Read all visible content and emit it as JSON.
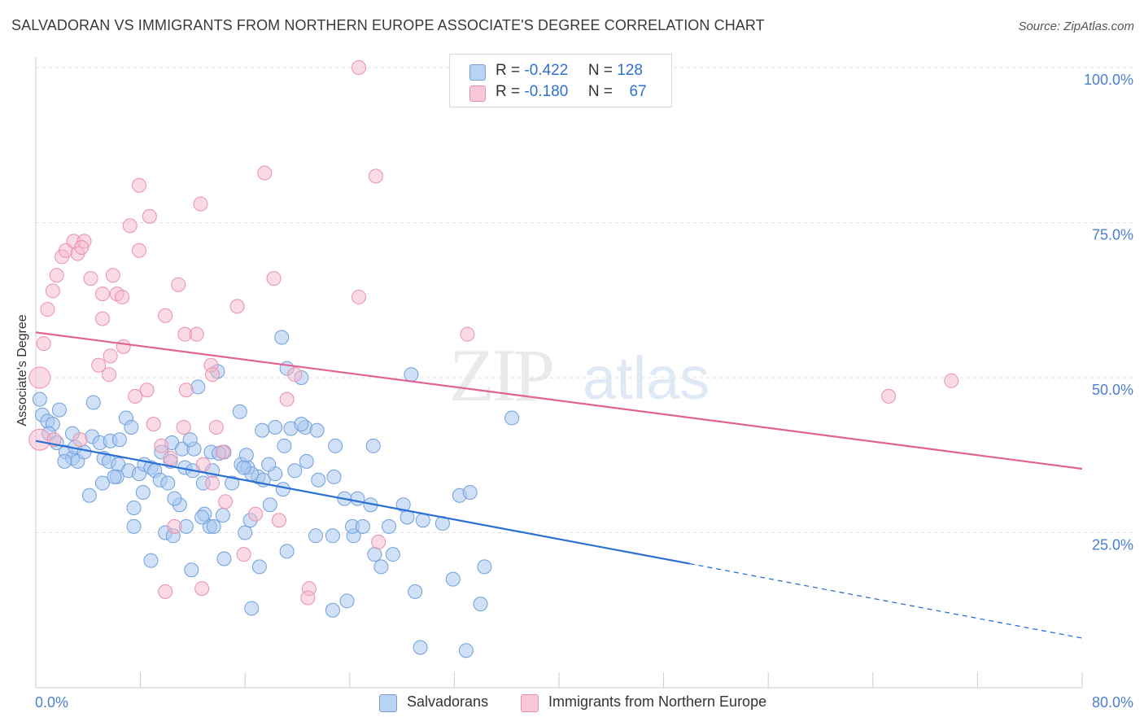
{
  "title": "SALVADORAN VS IMMIGRANTS FROM NORTHERN EUROPE ASSOCIATE'S DEGREE CORRELATION CHART",
  "source": "Source: ZipAtlas.com",
  "watermark": {
    "zip": "ZIP",
    "atlas": "atlas"
  },
  "legend": {
    "salvadorans": {
      "r_label": "R =",
      "r_value": "-0.422",
      "n_label": "N =",
      "n_value": "128"
    },
    "immigrants": {
      "r_label": "R =",
      "r_value": "-0.180",
      "n_label": "N =",
      "n_value": "67"
    }
  },
  "bottom_legend": {
    "series1": "Salvadorans",
    "series2": "Immigrants from Northern Europe"
  },
  "colors": {
    "blue_fill": "#a9c8f0",
    "blue_stroke": "#6f9fdc",
    "blue_line": "#2a6fd4",
    "pink_fill": "#f6b8cb",
    "pink_stroke": "#ea8fab",
    "pink_line": "#e26390",
    "tick_label": "#4a7fd0",
    "grid": "#e0e0e0"
  },
  "chart_data": {
    "type": "scatter",
    "title": "SALVADORAN VS IMMIGRANTS FROM NORTHERN EUROPE ASSOCIATE'S DEGREE CORRELATION CHART",
    "xlabel": "",
    "ylabel": "Associate's Degree",
    "xlim": [
      0,
      80
    ],
    "ylim": [
      0,
      102
    ],
    "x_tick_labels": [
      "0.0%",
      "80.0%"
    ],
    "y_tick_labels": [
      "25.0%",
      "50.0%",
      "75.0%",
      "100.0%"
    ],
    "y_ticks": [
      25,
      50,
      75,
      100
    ],
    "grid": true,
    "series": [
      {
        "name": "Salvadorans",
        "r": -0.422,
        "n": 128,
        "trend": {
          "x0": 0,
          "y0": 39.8,
          "x1": 50,
          "y1": 20.0,
          "dash_to_x": 80,
          "dash_to_y": 8.0
        },
        "points": [
          [
            0.3,
            46.5
          ],
          [
            0.5,
            44
          ],
          [
            0.9,
            43
          ],
          [
            1.3,
            42.5
          ],
          [
            1.8,
            44.8
          ],
          [
            1.0,
            41
          ],
          [
            1.6,
            39.5
          ],
          [
            2.3,
            38
          ],
          [
            2.8,
            37
          ],
          [
            3.2,
            36.5
          ],
          [
            2.2,
            36.5
          ],
          [
            3.0,
            38.8
          ],
          [
            3.7,
            38
          ],
          [
            4.3,
            40.5
          ],
          [
            4.9,
            39.5
          ],
          [
            5.7,
            39.8
          ],
          [
            6.4,
            40
          ],
          [
            6.9,
            43.5
          ],
          [
            7.3,
            42
          ],
          [
            4.4,
            46
          ],
          [
            2.8,
            41
          ],
          [
            5.2,
            37
          ],
          [
            5.6,
            36.5
          ],
          [
            6.3,
            36
          ],
          [
            7.1,
            35
          ],
          [
            7.9,
            34.5
          ],
          [
            8.3,
            36
          ],
          [
            8.8,
            35.5
          ],
          [
            9.6,
            38
          ],
          [
            10.4,
            39.5
          ],
          [
            11.2,
            38.5
          ],
          [
            12.1,
            38.5
          ],
          [
            12.4,
            48.5
          ],
          [
            11.8,
            40
          ],
          [
            13.4,
            38
          ],
          [
            14.4,
            38
          ],
          [
            15.7,
            36
          ],
          [
            16.2,
            35.5
          ],
          [
            17.0,
            34
          ],
          [
            17.4,
            33.5
          ],
          [
            7.5,
            29
          ],
          [
            9.1,
            35
          ],
          [
            10.3,
            36.5
          ],
          [
            11.4,
            35.5
          ],
          [
            12.8,
            33
          ],
          [
            14.0,
            37.8
          ],
          [
            15.0,
            33
          ],
          [
            16.5,
            34.5
          ],
          [
            18.3,
            34.5
          ],
          [
            19.8,
            35
          ],
          [
            5.1,
            33
          ],
          [
            6.2,
            34
          ],
          [
            8.2,
            31.5
          ],
          [
            9.5,
            33.5
          ],
          [
            10.1,
            33
          ],
          [
            12.0,
            35
          ],
          [
            13.5,
            35
          ],
          [
            15.9,
            35.5
          ],
          [
            17.8,
            36
          ],
          [
            18.9,
            32
          ],
          [
            20.7,
            36.5
          ],
          [
            21.6,
            33.5
          ],
          [
            22.8,
            34
          ],
          [
            23.6,
            30.5
          ],
          [
            25.6,
            29.5
          ],
          [
            27.0,
            26
          ],
          [
            28.1,
            29.5
          ],
          [
            29.6,
            27
          ],
          [
            31.1,
            26.5
          ],
          [
            32.4,
            31
          ],
          [
            4.1,
            31
          ],
          [
            6.0,
            34
          ],
          [
            7.5,
            26
          ],
          [
            9.9,
            25
          ],
          [
            10.5,
            24.5
          ],
          [
            11.5,
            26
          ],
          [
            12.9,
            28
          ],
          [
            13.3,
            26
          ],
          [
            14.3,
            27.8
          ],
          [
            16.0,
            25
          ],
          [
            17.9,
            29.5
          ],
          [
            16.4,
            27
          ],
          [
            13.6,
            26
          ],
          [
            11.0,
            29.5
          ],
          [
            10.6,
            30.5
          ],
          [
            12.7,
            27.5
          ],
          [
            8.8,
            20.5
          ],
          [
            11.9,
            19
          ],
          [
            14.4,
            20.8
          ],
          [
            17.1,
            19.5
          ],
          [
            19.2,
            22
          ],
          [
            21.4,
            24.5
          ],
          [
            24.3,
            24.5
          ],
          [
            24.2,
            26
          ],
          [
            25.0,
            26
          ],
          [
            26.4,
            19.5
          ],
          [
            27.3,
            21.5
          ],
          [
            29.0,
            15.5
          ],
          [
            31.9,
            17.5
          ],
          [
            34.3,
            19.5
          ],
          [
            22.7,
            12.5
          ],
          [
            23.8,
            14
          ],
          [
            16.5,
            12.8
          ],
          [
            22.7,
            24.5
          ],
          [
            28.4,
            27.5
          ],
          [
            24.6,
            30.5
          ],
          [
            20.6,
            42
          ],
          [
            18.3,
            42
          ],
          [
            19.5,
            41.8
          ],
          [
            21.5,
            41.5
          ],
          [
            20.3,
            42.5
          ],
          [
            22.9,
            39
          ],
          [
            19.2,
            51.5
          ],
          [
            20.3,
            50
          ],
          [
            18.8,
            56.5
          ],
          [
            13.9,
            51
          ],
          [
            15.6,
            44.5
          ],
          [
            17.3,
            41.5
          ],
          [
            19.0,
            39
          ],
          [
            16.1,
            37.5
          ],
          [
            33.2,
            31.5
          ],
          [
            28.7,
            50.5
          ],
          [
            36.4,
            43.5
          ],
          [
            32.9,
            6
          ],
          [
            34.0,
            13.5
          ],
          [
            29.4,
            6.5
          ],
          [
            25.9,
            21.5
          ],
          [
            25.8,
            39
          ]
        ]
      },
      {
        "name": "Immigrants from Northern Europe",
        "r": -0.18,
        "n": 67,
        "trend": {
          "x0": 0,
          "y0": 57.3,
          "x1": 80,
          "y1": 35.3
        },
        "points": [
          [
            0.3,
            50
          ],
          [
            0.3,
            40
          ],
          [
            0.6,
            55.5
          ],
          [
            0.9,
            61
          ],
          [
            1.3,
            64
          ],
          [
            1.6,
            66.5
          ],
          [
            2.0,
            69.5
          ],
          [
            2.3,
            70.5
          ],
          [
            2.9,
            72
          ],
          [
            3.2,
            70
          ],
          [
            3.7,
            72
          ],
          [
            3.5,
            71
          ],
          [
            4.2,
            66
          ],
          [
            5.1,
            63.5
          ],
          [
            5.1,
            59.5
          ],
          [
            5.7,
            53.5
          ],
          [
            5.6,
            50.5
          ],
          [
            5.9,
            66.5
          ],
          [
            6.2,
            63.5
          ],
          [
            6.7,
            55
          ],
          [
            7.2,
            74.5
          ],
          [
            7.9,
            81
          ],
          [
            7.9,
            70.5
          ],
          [
            8.7,
            76
          ],
          [
            9.9,
            60
          ],
          [
            10.9,
            65
          ],
          [
            11.4,
            57
          ],
          [
            12.3,
            57
          ],
          [
            12.6,
            78
          ],
          [
            13.4,
            52
          ],
          [
            15.4,
            61.5
          ],
          [
            17.5,
            83
          ],
          [
            18.2,
            66
          ],
          [
            19.2,
            46.5
          ],
          [
            19.8,
            50.5
          ],
          [
            14.3,
            38
          ],
          [
            16.8,
            28
          ],
          [
            8.5,
            48
          ],
          [
            11.5,
            48
          ],
          [
            13.8,
            42
          ],
          [
            9.0,
            42.5
          ],
          [
            9.6,
            39
          ],
          [
            10.3,
            37
          ],
          [
            11.3,
            42
          ],
          [
            12.8,
            36
          ],
          [
            13.5,
            33
          ],
          [
            14.5,
            30
          ],
          [
            15.9,
            21.5
          ],
          [
            18.6,
            27
          ],
          [
            20.9,
            16
          ],
          [
            20.8,
            14.5
          ],
          [
            12.7,
            16
          ],
          [
            9.9,
            15.5
          ],
          [
            10.6,
            26
          ],
          [
            13.5,
            50.5
          ],
          [
            26.2,
            23.5
          ],
          [
            26.0,
            82.5
          ],
          [
            24.7,
            63
          ],
          [
            24.7,
            100
          ],
          [
            33.0,
            57
          ],
          [
            70.0,
            49.5
          ],
          [
            65.2,
            47
          ],
          [
            6.6,
            63
          ],
          [
            3.4,
            40
          ],
          [
            4.8,
            52
          ],
          [
            7.6,
            47
          ],
          [
            1.4,
            40
          ]
        ]
      }
    ]
  }
}
